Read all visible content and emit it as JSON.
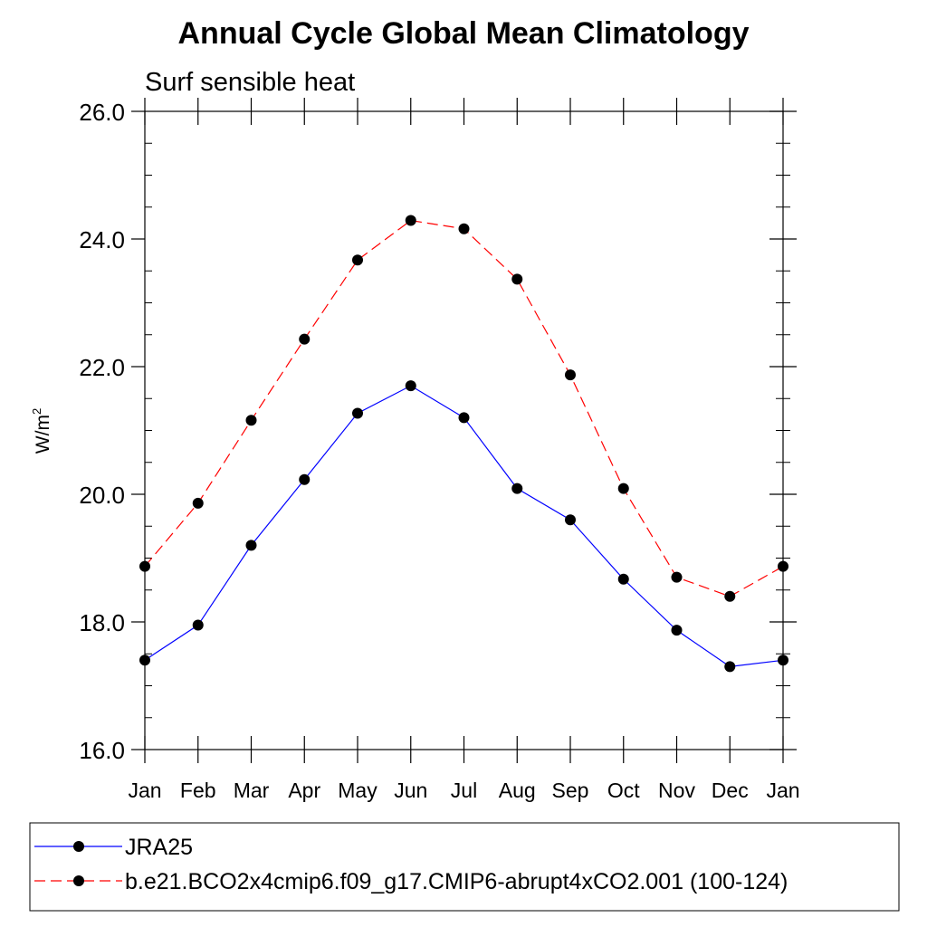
{
  "chart_data": {
    "type": "line",
    "title": "Annual Cycle Global Mean Climatology",
    "subtitle": "Surf sensible heat",
    "ylabel": "W/m",
    "ylabel_superscript": "2",
    "categories": [
      "Jan",
      "Feb",
      "Mar",
      "Apr",
      "May",
      "Jun",
      "Jul",
      "Aug",
      "Sep",
      "Oct",
      "Nov",
      "Dec",
      "Jan"
    ],
    "ylim": [
      16.0,
      26.0
    ],
    "yticks": [
      "16.0",
      "18.0",
      "20.0",
      "22.0",
      "24.0",
      "26.0"
    ],
    "ytick_values": [
      16,
      18,
      20,
      22,
      24,
      26
    ],
    "grid": false,
    "legend_position": "bottom",
    "series": [
      {
        "name": "JRA25",
        "color": "#0000ff",
        "dash": "solid",
        "values": [
          17.4,
          17.95,
          19.2,
          20.23,
          21.27,
          21.7,
          21.2,
          20.09,
          19.6,
          18.67,
          17.87,
          17.3,
          17.4
        ]
      },
      {
        "name": "b.e21.BCO2x4cmip6.f09_g17.CMIP6-abrupt4xCO2.001 (100-124)",
        "color": "#ff0000",
        "dash": "dashed",
        "values": [
          18.87,
          19.86,
          21.16,
          22.43,
          23.67,
          24.29,
          24.16,
          23.37,
          21.87,
          20.09,
          18.7,
          18.4,
          18.87
        ]
      }
    ]
  }
}
